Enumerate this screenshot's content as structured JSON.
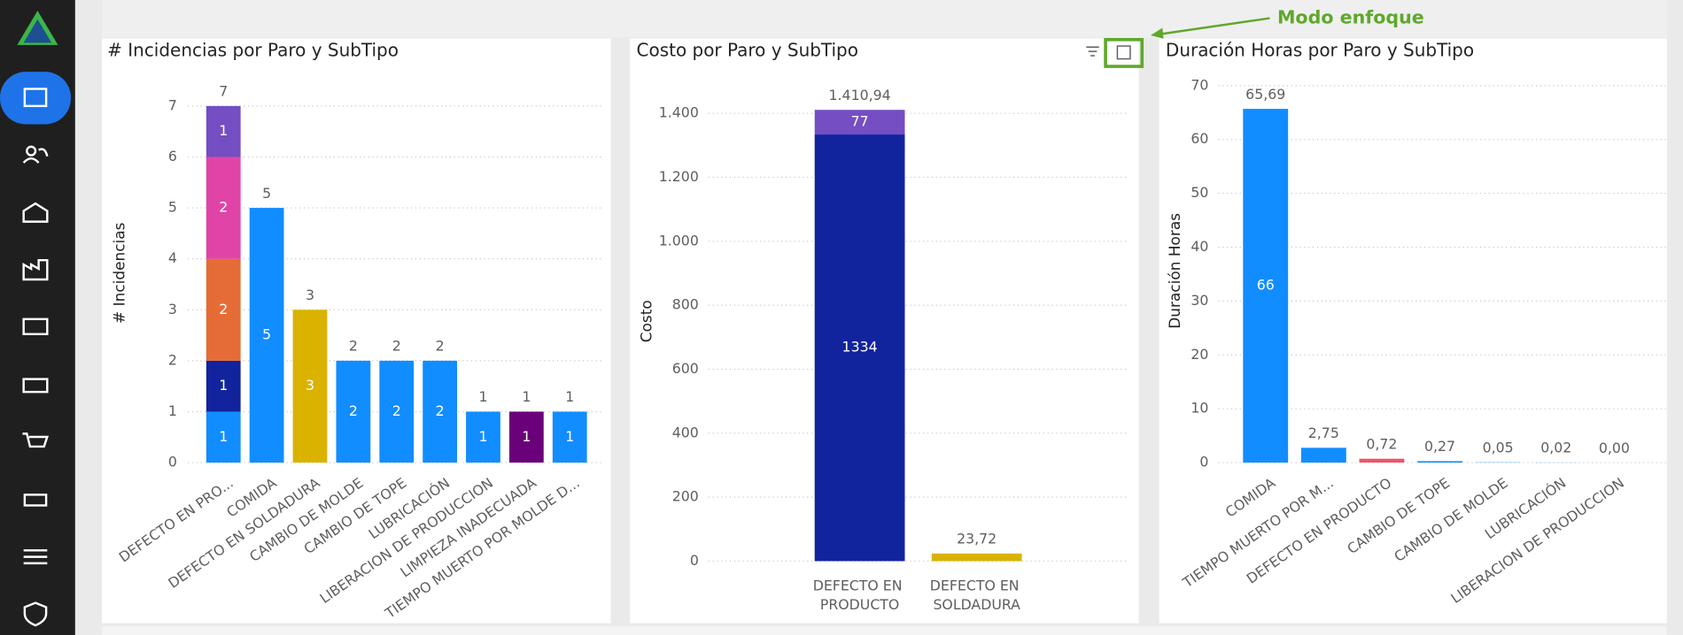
{
  "annotation": "Modo enfoque",
  "chart_data": [
    {
      "type": "stacked_bar",
      "title": "# Incidencias por Paro y SubTipo",
      "y_label": "# Incidencias",
      "categories": [
        "DEFECTO EN PRO...",
        "COMIDA",
        "DEFECTO EN SOLDADURA",
        "CAMBIO DE MOLDE",
        "CAMBIO DE TOPE",
        "LUBRICACIÓN",
        "LIBERACION DE PRODUCCION",
        "LIMPIEZA INADECUADA",
        "TIEMPO MUERTO POR MOLDE D..."
      ],
      "series": [
        {
          "color": "#118DFF",
          "values": [
            1,
            5,
            null,
            2,
            2,
            2,
            1,
            null,
            1
          ]
        },
        {
          "color": "#12239E",
          "values": [
            1,
            null,
            null,
            null,
            null,
            null,
            null,
            null,
            null
          ]
        },
        {
          "color": "#E66C37",
          "values": [
            2,
            null,
            null,
            null,
            null,
            null,
            null,
            null,
            null
          ]
        },
        {
          "color": "#E044A7",
          "values": [
            2,
            null,
            null,
            null,
            null,
            null,
            null,
            null,
            null
          ]
        },
        {
          "color": "#744EC2",
          "values": [
            1,
            null,
            null,
            null,
            null,
            null,
            null,
            null,
            null
          ]
        },
        {
          "color": "#D9B300",
          "values": [
            null,
            null,
            3,
            null,
            null,
            null,
            null,
            null,
            null
          ]
        },
        {
          "color": "#6B007B",
          "values": [
            null,
            null,
            null,
            null,
            null,
            null,
            null,
            1,
            null
          ]
        }
      ],
      "totals": [
        7,
        5,
        3,
        2,
        2,
        2,
        1,
        1,
        1
      ],
      "ylim": [
        0,
        7
      ],
      "yticks": [
        0,
        1,
        2,
        3,
        4,
        5,
        6,
        7
      ],
      "grid": true
    },
    {
      "type": "stacked_bar",
      "title": "Costo por Paro y SubTipo",
      "y_label": "Costo",
      "categories": [
        "DEFECTO EN PRODUCTO",
        "DEFECTO EN SOLDADURA"
      ],
      "series": [
        {
          "color": "#12239E",
          "values": [
            1334,
            null
          ]
        },
        {
          "color": "#744EC2",
          "values": [
            77,
            null
          ]
        },
        {
          "color": "#D9B300",
          "values": [
            null,
            23.72
          ]
        }
      ],
      "totals": [
        "1.410,94",
        "23,72"
      ],
      "ylim": [
        0,
        1500
      ],
      "yticks": [
        0,
        200,
        400,
        600,
        800,
        {
          "value": 1000,
          "label": "1.000"
        },
        {
          "value": 1200,
          "label": "1.200"
        },
        {
          "value": 1400,
          "label": "1.400"
        }
      ],
      "grid": true
    },
    {
      "type": "bar",
      "title": "Duración Horas por Paro y SubTipo",
      "y_label": "Duración Horas",
      "categories": [
        "COMIDA",
        "TIEMPO MUERTO POR M...",
        "DEFECTO EN PRODUCTO",
        "CAMBIO DE TOPE",
        "CAMBIO DE MOLDE",
        "LUBRICACIÓN",
        "LIBERACION DE PRODUCCION"
      ],
      "values": [
        65.69,
        2.75,
        0.72,
        0.27,
        0.05,
        0.02,
        0.0
      ],
      "value_labels": [
        "65,69",
        "2,75",
        "0,72",
        "0,27",
        "0,05",
        "0,02",
        "0,00"
      ],
      "inner_labels": [
        "66",
        null,
        null,
        null,
        null,
        null,
        null
      ],
      "colors": [
        "#118DFF",
        "#118DFF",
        "#E8586B",
        "#118DFF",
        "#118DFF",
        "#118DFF",
        "#118DFF"
      ],
      "ylim": [
        0,
        70
      ],
      "yticks": [
        0,
        10,
        20,
        30,
        40,
        50,
        60,
        70
      ],
      "grid": true
    }
  ]
}
